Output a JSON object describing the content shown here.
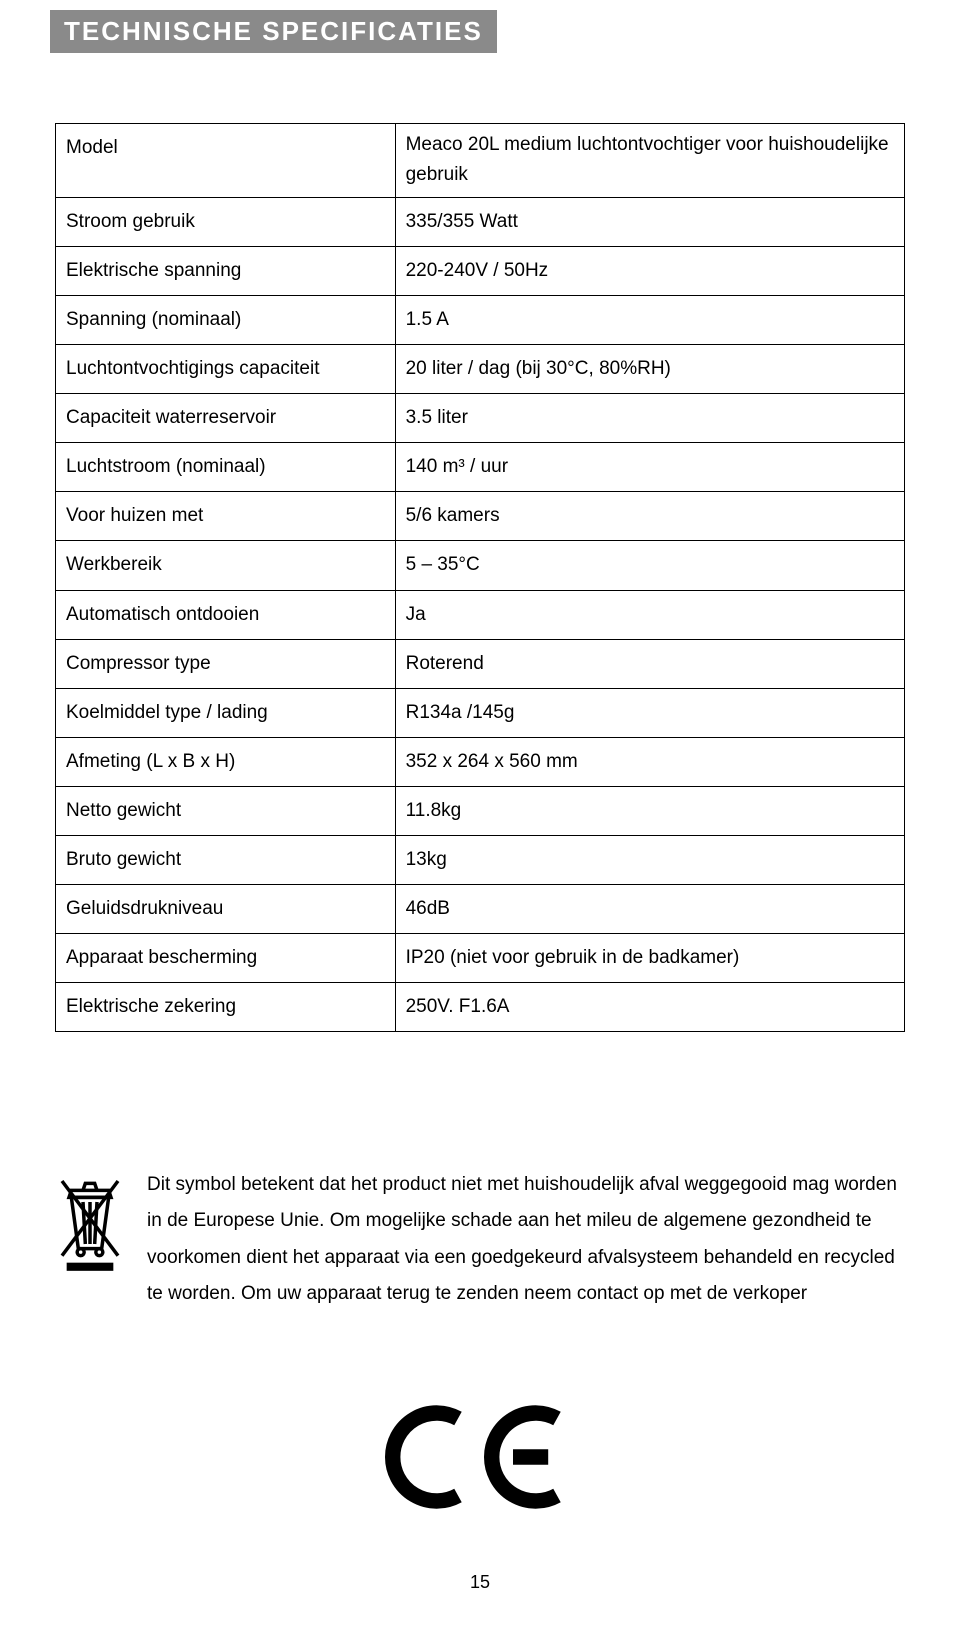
{
  "header": {
    "title": "TECHNISCHE SPECIFICATIES"
  },
  "table": {
    "rows": [
      {
        "label": "Model",
        "value": "Meaco 20L medium luchtontvochtiger voor huishoudelijke gebruik",
        "double": true
      },
      {
        "label": "Stroom gebruik",
        "value": "335/355 Watt"
      },
      {
        "label": "Elektrische spanning",
        "value": "220-240V / 50Hz"
      },
      {
        "label": "Spanning (nominaal)",
        "value": "1.5 A"
      },
      {
        "label": "Luchtontvochtigings capaciteit",
        "value": "20 liter / dag (bij 30°C, 80%RH)"
      },
      {
        "label": "Capaciteit waterreservoir",
        "value": "3.5 liter"
      },
      {
        "label": "Luchtstroom (nominaal)",
        "value": "140 m³ / uur"
      },
      {
        "label": "Voor huizen met",
        "value": "5/6 kamers"
      },
      {
        "label": "Werkbereik",
        "value": "5 – 35°C"
      },
      {
        "label": "Automatisch ontdooien",
        "value": "Ja"
      },
      {
        "label": "Compressor type",
        "value": "Roterend"
      },
      {
        "label": "Koelmiddel type / lading",
        "value": "R134a /145g"
      },
      {
        "label": "Afmeting (L x B x H)",
        "value": "352 x 264 x 560 mm"
      },
      {
        "label": "Netto gewicht",
        "value": "11.8kg"
      },
      {
        "label": "Bruto gewicht",
        "value": "13kg"
      },
      {
        "label": "Geluidsdrukniveau",
        "value": "46dB"
      },
      {
        "label": "Apparaat bescherming",
        "value": "IP20 (niet voor gebruik in de badkamer)"
      },
      {
        "label": "Elektrische zekering",
        "value": "250V. F1.6A"
      }
    ]
  },
  "info": {
    "text": "Dit symbol betekent dat het product niet met huishoudelijk afval weggegooid mag worden in de Europese Unie. Om mogelijke schade aan het mileu de algemene gezondheid te voorkomen dient het apparaat via een goedgekeurd afvalsysteem behandeld en recycled te worden. Om uw apparaat terug te zenden neem contact op met de verkoper"
  },
  "page": {
    "number": "15"
  },
  "styling": {
    "header_bg": "#8a8a8a",
    "header_fg": "#ffffff",
    "page_bg": "#ffffff",
    "border_color": "#000000",
    "font_family": "Arial",
    "body_font_size": 19,
    "header_font_size": 26,
    "table_label_width_pct": 40
  }
}
